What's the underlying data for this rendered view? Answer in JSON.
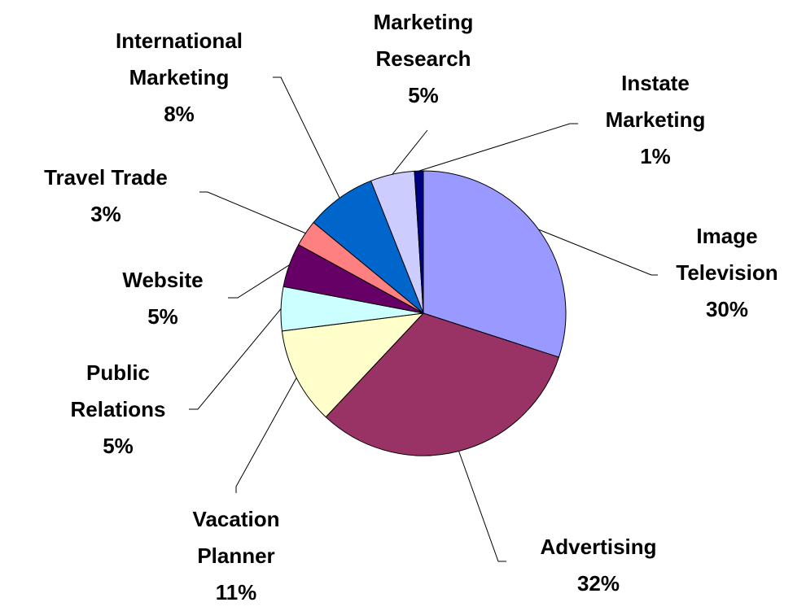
{
  "chart_data": {
    "type": "pie",
    "categories": [
      "Image Television",
      "Advertising",
      "Vacation Planner",
      "Public Relations",
      "Website",
      "Travel Trade",
      "International Marketing",
      "Marketing Research",
      "Instate Marketing"
    ],
    "values": [
      30,
      32,
      11,
      5,
      5,
      3,
      8,
      5,
      1
    ],
    "value_labels": [
      "30%",
      "32%",
      "11%",
      "5%",
      "5%",
      "3%",
      "8%",
      "5%",
      "1%"
    ],
    "colors": [
      "#9999ff",
      "#993366",
      "#ffffcc",
      "#ccffff",
      "#660066",
      "#ff8080",
      "#0066cc",
      "#ccccff",
      "#000080"
    ]
  }
}
